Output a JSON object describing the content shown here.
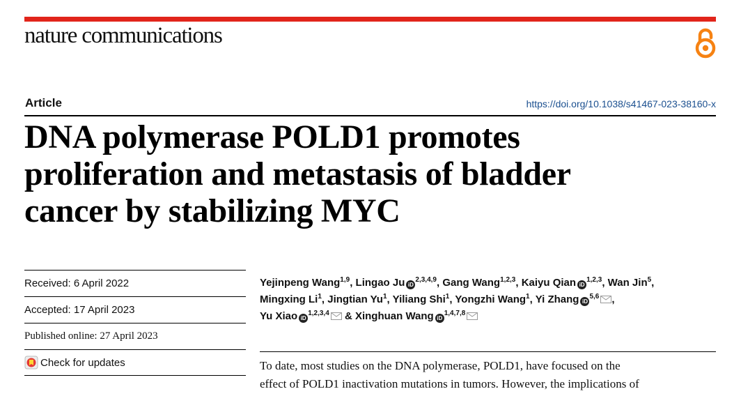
{
  "journal": "nature communications",
  "article_type": "Article",
  "doi": "https://doi.org/10.1038/s41467-023-38160-x",
  "title_lines": [
    "DNA polymerase POLD1 promotes",
    "proliferation and metastasis of bladder",
    "cancer by stabilizing MYC"
  ],
  "dates": {
    "received": "Received: 6 April 2022",
    "accepted": "Accepted: 17 April 2023",
    "published": "Published online: 27 April 2023",
    "check_updates": "Check for updates"
  },
  "authors": [
    {
      "name": "Yejinpeng Wang",
      "aff": "1,9",
      "orcid": false,
      "mail": false,
      "sep": ", "
    },
    {
      "name": "Lingao Ju",
      "aff": "2,3,4,9",
      "orcid": true,
      "mail": false,
      "sep": ", "
    },
    {
      "name": "Gang Wang",
      "aff": "1,2,3",
      "orcid": false,
      "mail": false,
      "sep": ", "
    },
    {
      "name": "Kaiyu Qian",
      "aff": "1,2,3",
      "orcid": true,
      "mail": false,
      "sep": ", "
    },
    {
      "name": "Wan Jin",
      "aff": "5",
      "orcid": false,
      "mail": false,
      "sep": ","
    },
    {
      "name": "Mingxing Li",
      "aff": "1",
      "orcid": false,
      "mail": false,
      "sep": ", "
    },
    {
      "name": "Jingtian Yu",
      "aff": "1",
      "orcid": false,
      "mail": false,
      "sep": ", "
    },
    {
      "name": "Yiliang Shi",
      "aff": "1",
      "orcid": false,
      "mail": false,
      "sep": ", "
    },
    {
      "name": "Yongzhi Wang",
      "aff": "1",
      "orcid": false,
      "mail": false,
      "sep": ", "
    },
    {
      "name": "Yi Zhang",
      "aff": "5,6",
      "orcid": true,
      "mail": true,
      "sep": ","
    },
    {
      "name": "Yu Xiao",
      "aff": "1,2,3,4",
      "orcid": true,
      "mail": true,
      "sep": " & "
    },
    {
      "name": "Xinghuan Wang",
      "aff": "1,4,7,8",
      "orcid": true,
      "mail": true,
      "sep": ""
    }
  ],
  "orcid_label": "iD",
  "abstract_lines": [
    "To date, most studies on the DNA polymerase, POLD1, have focused on the",
    "effect of POLD1 inactivation mutations in tumors. However, the implications of"
  ]
}
